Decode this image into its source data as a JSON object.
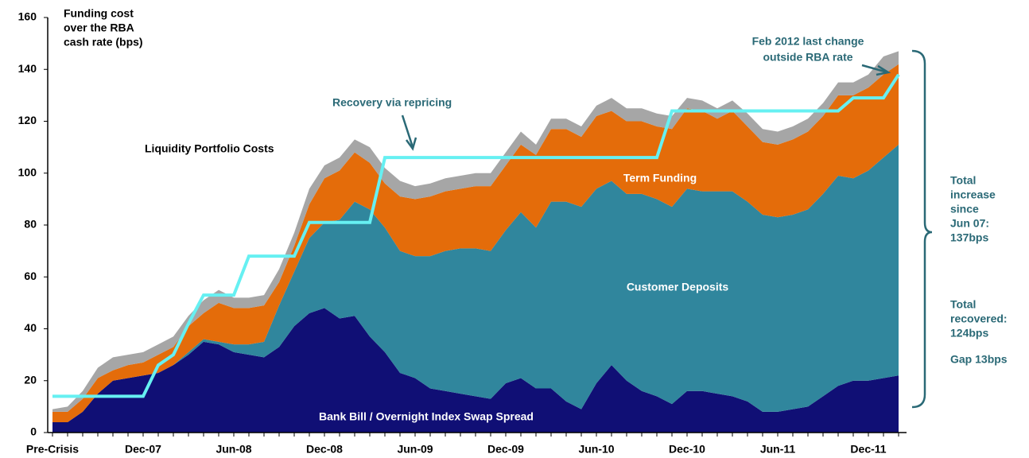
{
  "chart_data": {
    "type": "stacked-area",
    "ylabel": [
      "Funding cost",
      "over the RBA",
      "cash rate (bps)"
    ],
    "categories": [
      "Pre-Crisis",
      null,
      null,
      null,
      null,
      null,
      "Dec-07",
      null,
      null,
      null,
      null,
      null,
      "Jun-08",
      null,
      null,
      null,
      null,
      null,
      "Dec-08",
      null,
      null,
      null,
      null,
      null,
      "Jun-09",
      null,
      null,
      null,
      null,
      null,
      "Dec-09",
      null,
      null,
      null,
      null,
      null,
      "Jun-10",
      null,
      null,
      null,
      null,
      null,
      "Dec-10",
      null,
      null,
      null,
      null,
      null,
      "Jun-11",
      null,
      null,
      null,
      null,
      null,
      "Dec-11",
      null,
      null
    ],
    "series": [
      {
        "name": "Bank Bill / Overnight Index Swap Spread",
        "color": "#100f75",
        "values": [
          4,
          4,
          8,
          15,
          20,
          21,
          22,
          23,
          26,
          30,
          35,
          34,
          31,
          30,
          29,
          33,
          41,
          46,
          48,
          44,
          45,
          37,
          31,
          23,
          21,
          17,
          16,
          15,
          14,
          13,
          19,
          21,
          17,
          17,
          12,
          9,
          19,
          26,
          20,
          16,
          14,
          11,
          16,
          16,
          15,
          14,
          12,
          8,
          8,
          9,
          10,
          14,
          18,
          20,
          20,
          21,
          22
        ]
      },
      {
        "name": "Customer Deposits",
        "color": "#30869d",
        "values": [
          0,
          0,
          0,
          0,
          0,
          0,
          0,
          0,
          0,
          1,
          1,
          1,
          3,
          4,
          6,
          16,
          21,
          29,
          33,
          38,
          44,
          49,
          48,
          47,
          47,
          51,
          54,
          56,
          57,
          57,
          59,
          64,
          62,
          72,
          77,
          78,
          75,
          71,
          72,
          76,
          76,
          76,
          78,
          77,
          78,
          79,
          77,
          76,
          75,
          75,
          76,
          78,
          81,
          78,
          81,
          85,
          89
        ]
      },
      {
        "name": "Term Funding",
        "color": "#e46c0a",
        "values": [
          4,
          4,
          5,
          6,
          4,
          5,
          5,
          7,
          7,
          10,
          10,
          15,
          14,
          14,
          14,
          9,
          10,
          13,
          17,
          19,
          19,
          18,
          17,
          21,
          22,
          23,
          23,
          23,
          24,
          25,
          25,
          26,
          28,
          28,
          28,
          27,
          28,
          27,
          28,
          28,
          28,
          30,
          31,
          31,
          28,
          31,
          29,
          28,
          28,
          29,
          30,
          30,
          31,
          32,
          32,
          32,
          31
        ]
      },
      {
        "name": "Liquidity Portfolio Costs",
        "color": "#a6a6a6",
        "values": [
          1,
          2,
          3,
          4,
          5,
          4,
          4,
          4,
          4,
          4,
          5,
          5,
          4,
          4,
          4,
          5,
          5,
          6,
          5,
          5,
          5,
          6,
          6,
          6,
          5,
          5,
          5,
          5,
          5,
          5,
          5,
          5,
          4,
          4,
          4,
          4,
          4,
          5,
          5,
          5,
          5,
          5,
          4,
          4,
          4,
          4,
          5,
          5,
          5,
          5,
          5,
          5,
          5,
          5,
          5,
          7,
          5
        ]
      }
    ],
    "line": {
      "name": "Recovery via repricing",
      "color": "#66f0f2",
      "values": [
        14,
        14,
        14,
        14,
        14,
        14,
        14,
        26,
        30,
        42,
        53,
        53,
        53,
        68,
        68,
        68,
        68,
        81,
        81,
        81,
        81,
        81,
        106,
        106,
        106,
        106,
        106,
        106,
        106,
        106,
        106,
        106,
        106,
        106,
        106,
        106,
        106,
        106,
        106,
        106,
        106,
        124,
        124,
        124,
        124,
        124,
        124,
        124,
        124,
        124,
        124,
        124,
        124,
        129,
        129,
        129,
        138
      ]
    },
    "annotations": {
      "feb": [
        "Feb 2012 last change",
        "outside RBA rate"
      ],
      "increase": [
        "Total",
        "increase",
        "since",
        "Jun 07:",
        "137bps"
      ],
      "recovered": [
        "Total",
        "recovered:",
        "124bps"
      ],
      "gap": "Gap 13bps"
    },
    "ylim": [
      0,
      160
    ],
    "yticks": [
      0,
      20,
      40,
      60,
      80,
      100,
      120,
      140,
      160
    ],
    "grid": false
  }
}
